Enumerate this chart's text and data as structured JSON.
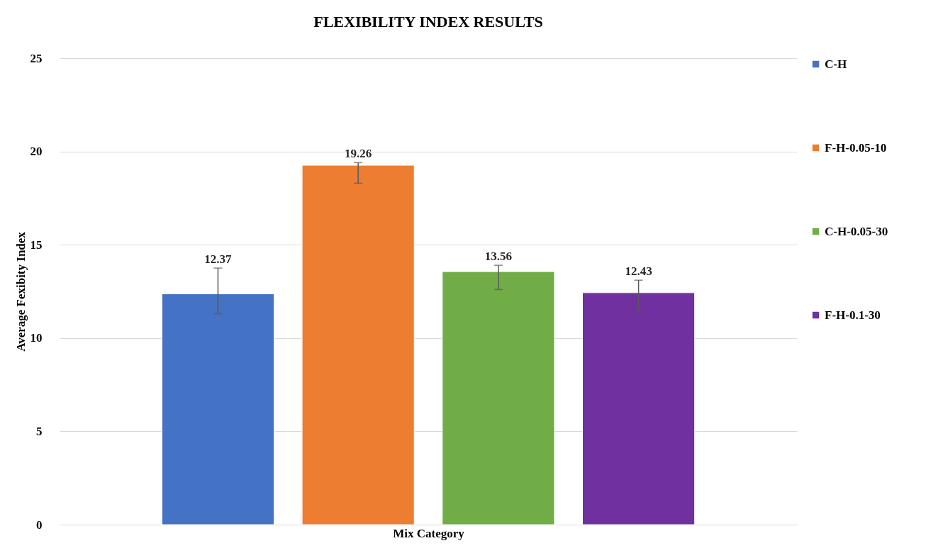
{
  "chart_data": {
    "type": "bar",
    "title": "FLEXIBILITY INDEX RESULTS",
    "xlabel": "Mix Category",
    "ylabel": "Average Fexibity Index",
    "categories": [
      null
    ],
    "series": [
      {
        "name": "C-H",
        "color": "#4472c4",
        "values": [
          12.37
        ],
        "errors": [
          [
            11.3,
            13.75
          ]
        ]
      },
      {
        "name": "F-H-0.05-10",
        "color": "#ed7d31",
        "values": [
          19.26
        ],
        "errors": [
          [
            18.3,
            19.4
          ]
        ]
      },
      {
        "name": "C-H-0.05-30",
        "color": "#70ad47",
        "values": [
          13.56
        ],
        "errors": [
          [
            12.6,
            13.9
          ]
        ]
      },
      {
        "name": "F-H-0.1-30",
        "color": "#7030a0",
        "values": [
          12.43
        ],
        "errors": [
          [
            11.5,
            13.1
          ]
        ]
      }
    ],
    "ylim": [
      0,
      25
    ],
    "yticks": [
      0,
      5,
      10,
      15,
      20,
      25
    ],
    "grid": "y",
    "legend": "right",
    "data_labels": true
  }
}
